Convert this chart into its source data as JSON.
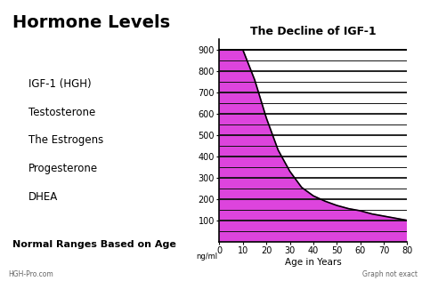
{
  "title_left": "Hormone Levels",
  "title_right": "The Decline of IGF-1",
  "items": [
    "IGF-1 (HGH)",
    "Testosterone",
    "The Estrogens",
    "Progesterone",
    "DHEA"
  ],
  "subtitle": "Normal Ranges Based on Age",
  "footer_left": "HGH-Pro.com",
  "footer_right": "Graph not exact",
  "xlabel": "Age in Years",
  "ylabel": "ng/ml",
  "ylim": [
    0,
    950
  ],
  "xlim": [
    0,
    80
  ],
  "yticks_major": [
    100,
    200,
    300,
    400,
    500,
    600,
    700,
    800,
    900
  ],
  "yticks_minor": [
    50,
    150,
    250,
    350,
    450,
    550,
    650,
    750,
    850
  ],
  "xticks": [
    0,
    10,
    20,
    30,
    40,
    50,
    60,
    70,
    80
  ],
  "curve_color": "#DD44DD",
  "background_color": "#ffffff",
  "grid_color": "#111111",
  "curve_x": [
    0,
    5,
    10,
    15,
    20,
    25,
    30,
    35,
    40,
    45,
    50,
    55,
    60,
    65,
    70,
    75,
    80
  ],
  "curve_y": [
    900,
    900,
    900,
    760,
    580,
    430,
    330,
    255,
    215,
    190,
    170,
    155,
    145,
    130,
    120,
    110,
    100
  ]
}
